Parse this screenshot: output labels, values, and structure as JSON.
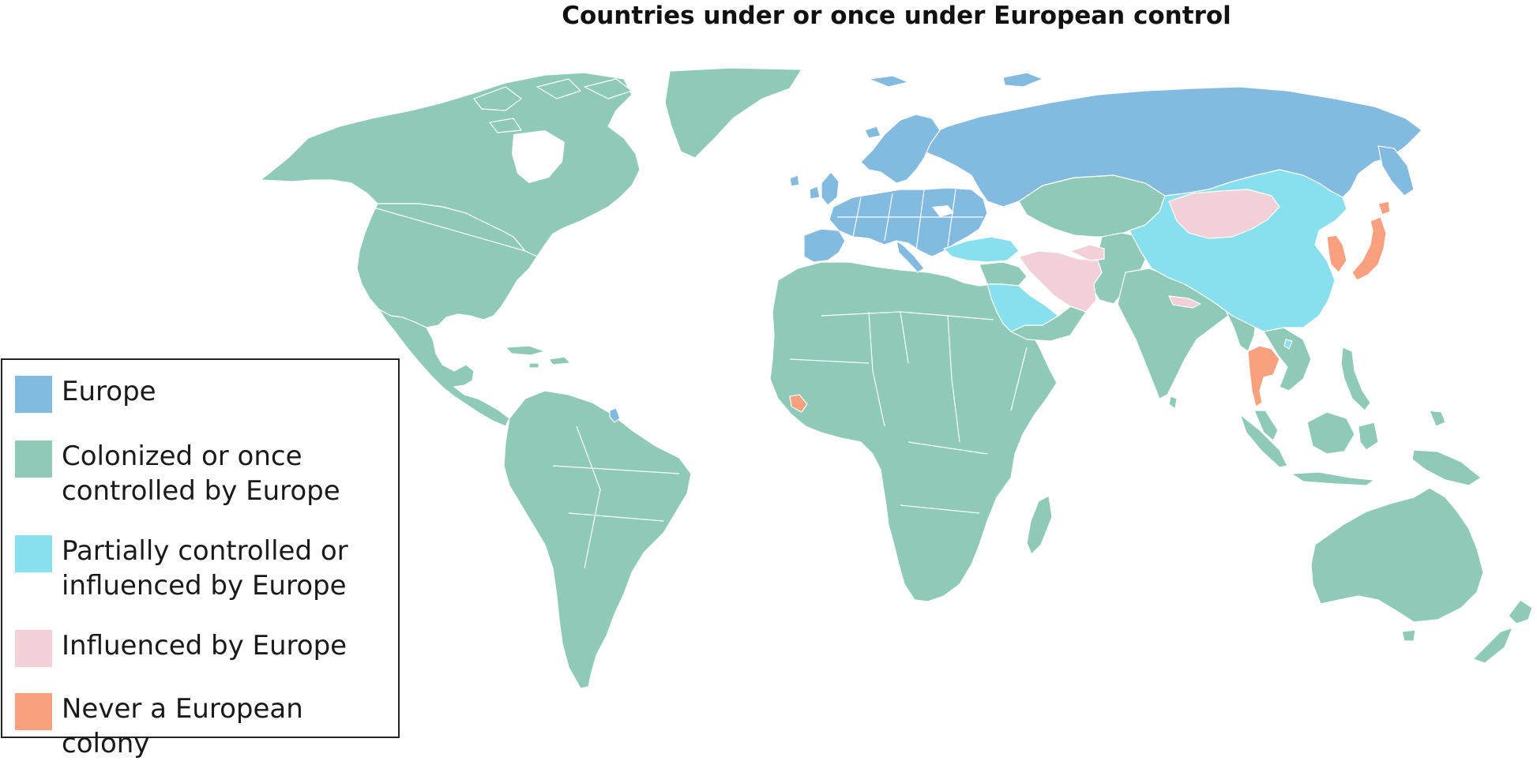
{
  "title": "Countries under or once under European control",
  "colors": {
    "europe": "#83badf",
    "colonized": "#8ecab7",
    "partial": "#88e0ee",
    "influenced": "#f2d0d7",
    "never": "#f9a07f",
    "border": "#ffffff"
  },
  "legend": [
    {
      "label": "Europe",
      "color": "#83badf"
    },
    {
      "label": "Colonized or once controlled by Europe",
      "color": "#8ecab7"
    },
    {
      "label": "Partially controlled or influenced by Europe",
      "color": "#88e0ee"
    },
    {
      "label": "Influenced by Europe",
      "color": "#f2d0d7"
    },
    {
      "label": "Never a European colony",
      "color": "#f9a07f"
    }
  ]
}
